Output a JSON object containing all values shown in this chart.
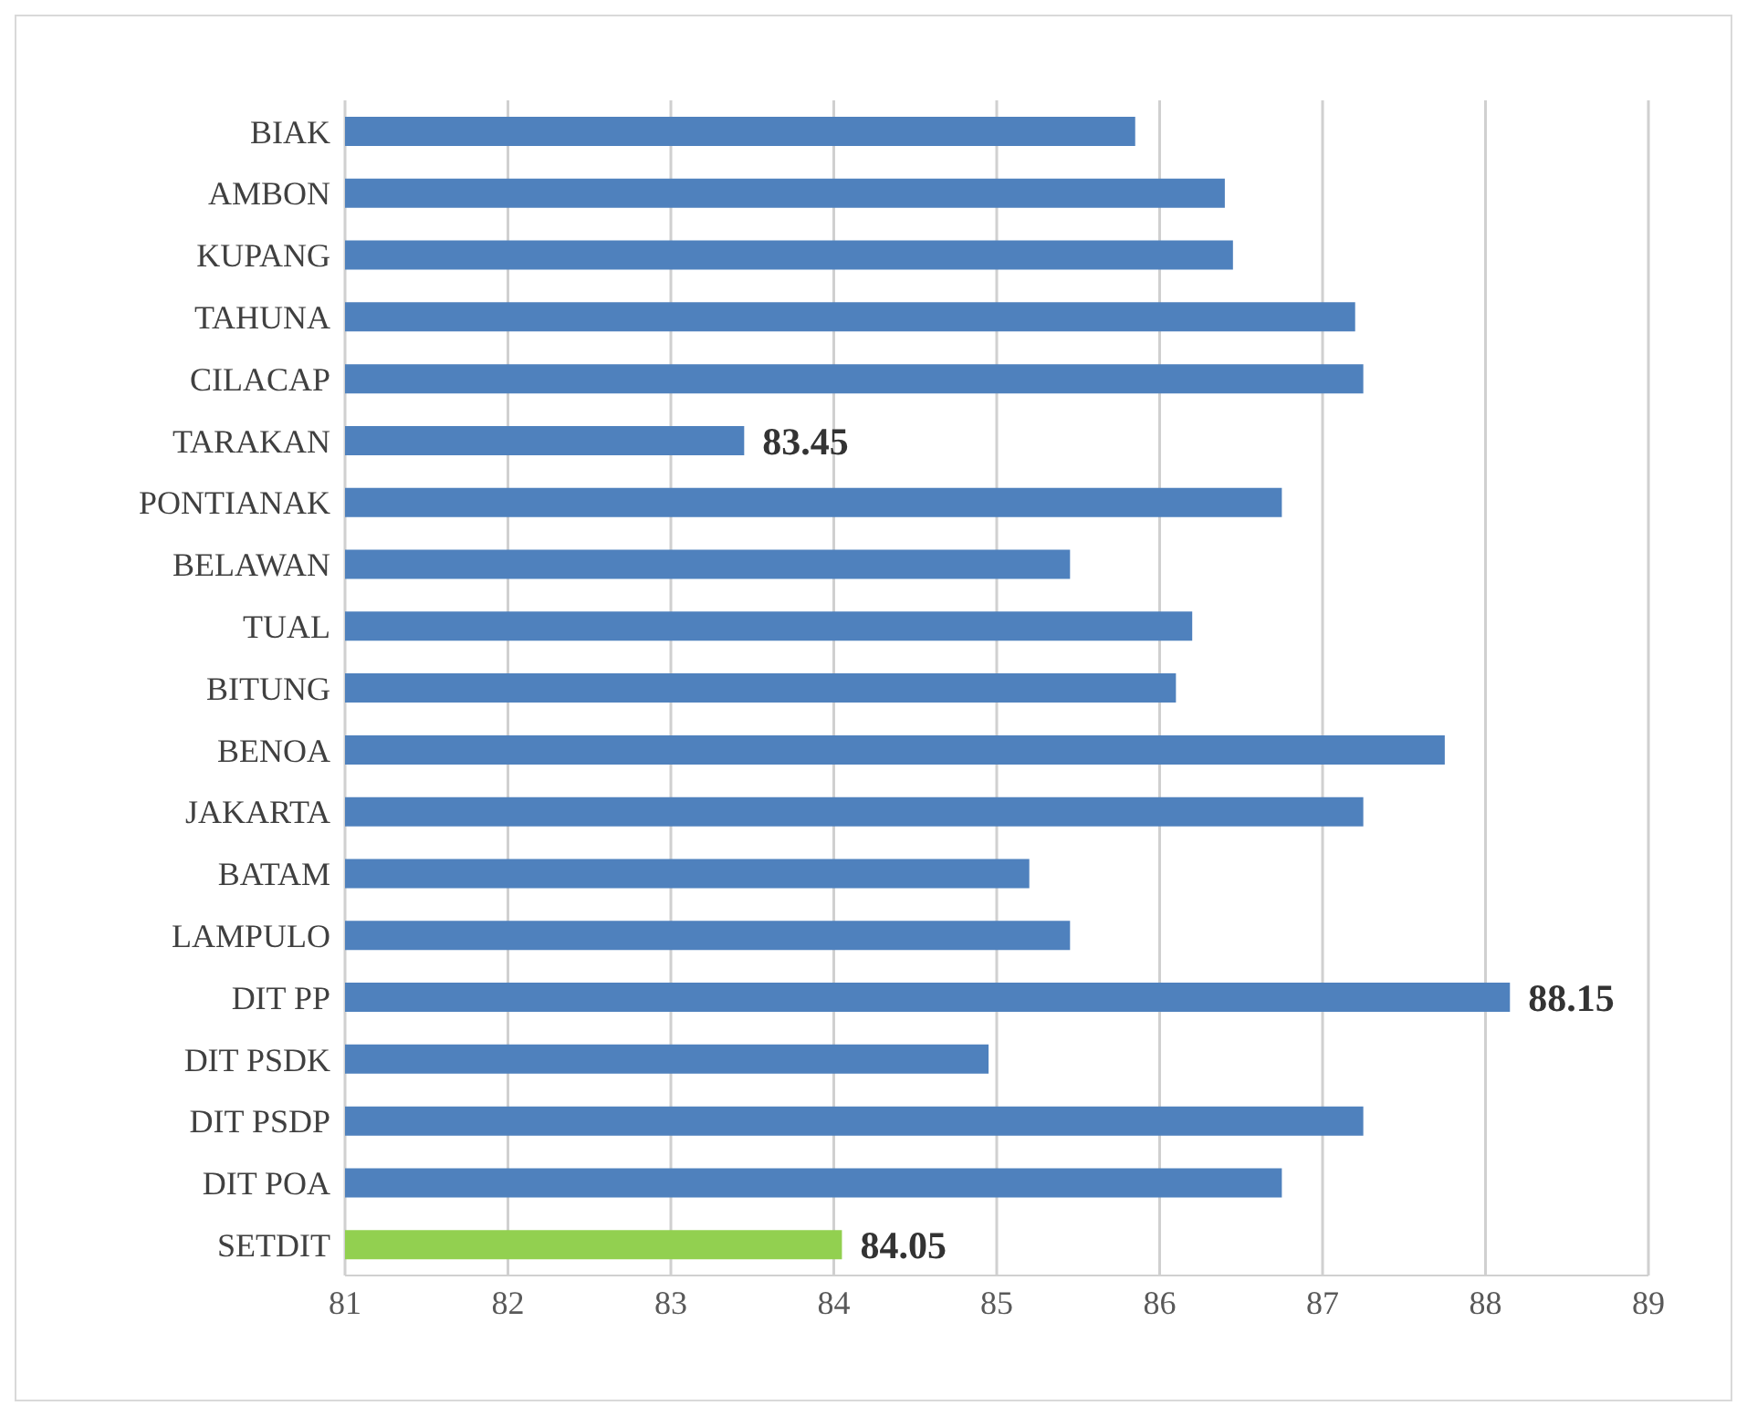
{
  "chart_data": {
    "type": "bar",
    "orientation": "horizontal",
    "categories": [
      "BIAK",
      "AMBON",
      "KUPANG",
      "TAHUNA",
      "CILACAP",
      "TARAKAN",
      "PONTIANAK",
      "BELAWAN",
      "TUAL",
      "BITUNG",
      "BENOA",
      "JAKARTA",
      "BATAM",
      "LAMPULO",
      "DIT PP",
      "DIT PSDK",
      "DIT PSDP",
      "DIT POA",
      "SETDIT"
    ],
    "values": [
      85.85,
      86.4,
      86.45,
      87.2,
      87.25,
      83.45,
      86.75,
      85.45,
      86.2,
      86.1,
      87.75,
      87.25,
      85.2,
      85.45,
      88.15,
      84.95,
      87.25,
      86.75,
      84.05
    ],
    "colors": [
      "#4f81bd",
      "#4f81bd",
      "#4f81bd",
      "#4f81bd",
      "#4f81bd",
      "#4f81bd",
      "#4f81bd",
      "#4f81bd",
      "#4f81bd",
      "#4f81bd",
      "#4f81bd",
      "#4f81bd",
      "#4f81bd",
      "#4f81bd",
      "#4f81bd",
      "#4f81bd",
      "#4f81bd",
      "#4f81bd",
      "#92d050"
    ],
    "value_labels": [
      null,
      null,
      null,
      null,
      null,
      "83.45",
      null,
      null,
      null,
      null,
      null,
      null,
      null,
      null,
      "88.15",
      null,
      null,
      null,
      "84.05"
    ],
    "xlim": [
      81,
      89
    ],
    "xticks": [
      81,
      82,
      83,
      84,
      85,
      86,
      87,
      88,
      89
    ],
    "grid": "x"
  }
}
